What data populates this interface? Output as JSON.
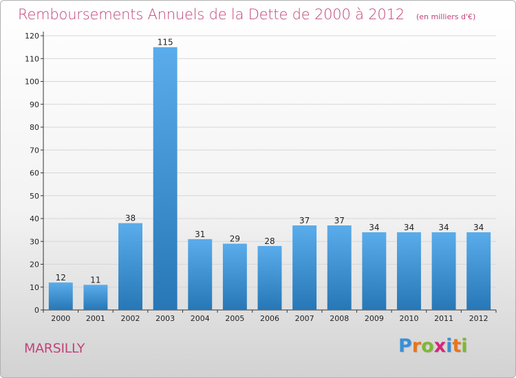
{
  "header": {
    "title": "Remboursements Annuels de la Dette de 2000 à 2012",
    "units": "(en milliers d'€)"
  },
  "footer": {
    "city": "MARSILLY",
    "logo": {
      "text": "Proxiti",
      "colors": [
        "#3a8fd6",
        "#e8761c",
        "#7fb733",
        "#d6257a",
        "#3a8fd6",
        "#e8761c",
        "#7fb733"
      ]
    }
  },
  "colors": {
    "bar_light": "#5aaceb",
    "bar_dark": "#2777b6",
    "axis": "#333333",
    "grid": "#d6d6d6",
    "accent": "#c0447a"
  },
  "chart_data": {
    "type": "bar",
    "categories": [
      "2000",
      "2001",
      "2002",
      "2003",
      "2004",
      "2005",
      "2006",
      "2007",
      "2008",
      "2009",
      "2010",
      "2011",
      "2012"
    ],
    "values": [
      12,
      11,
      38,
      115,
      31,
      29,
      28,
      37,
      37,
      34,
      34,
      34,
      34
    ],
    "title": "Remboursements Annuels de la Dette de 2000 à 2012",
    "xlabel": "",
    "ylabel": "",
    "ylim": [
      0,
      120
    ],
    "yticks": [
      0,
      10,
      20,
      30,
      40,
      50,
      60,
      70,
      80,
      90,
      100,
      110,
      120
    ],
    "grid": true,
    "data_labels": true
  }
}
